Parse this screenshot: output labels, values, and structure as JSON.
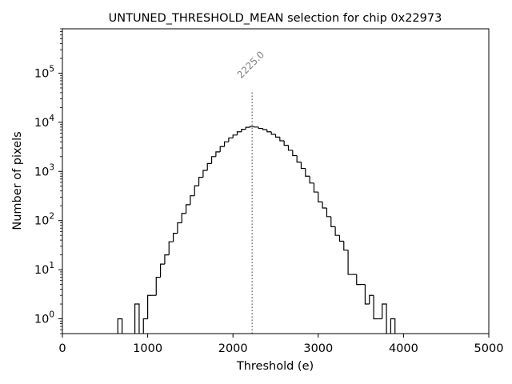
{
  "chart_data": {
    "type": "histogram",
    "title": "UNTUNED_THRESHOLD_MEAN selection for chip 0x22973",
    "xlabel": "Threshold (e)",
    "ylabel": "Number of pixels",
    "xlim": [
      0,
      5000
    ],
    "ylim": [
      0.5,
      800000
    ],
    "yscale": "log",
    "x_ticks": [
      {
        "value": 0,
        "label": "0"
      },
      {
        "value": 1000,
        "label": "1000"
      },
      {
        "value": 2000,
        "label": "2000"
      },
      {
        "value": 3000,
        "label": "3000"
      },
      {
        "value": 4000,
        "label": "4000"
      },
      {
        "value": 5000,
        "label": "5000"
      }
    ],
    "y_ticks": [
      {
        "exp": 0,
        "label": "10",
        "sup": "0"
      },
      {
        "exp": 1,
        "label": "10",
        "sup": "1"
      },
      {
        "exp": 2,
        "label": "10",
        "sup": "2"
      },
      {
        "exp": 3,
        "label": "10",
        "sup": "3"
      },
      {
        "exp": 4,
        "label": "10",
        "sup": "4"
      },
      {
        "exp": 5,
        "label": "10",
        "sup": "5"
      }
    ],
    "marker": {
      "value": 2225.0,
      "label": "2225.0",
      "line_top": 45000
    },
    "bin_width": 50,
    "bins": [
      [
        650,
        700,
        1
      ],
      [
        850,
        900,
        2
      ],
      [
        950,
        1000,
        1
      ],
      [
        1000,
        1050,
        3
      ],
      [
        1050,
        1100,
        3
      ],
      [
        1100,
        1150,
        7
      ],
      [
        1150,
        1200,
        13
      ],
      [
        1200,
        1250,
        20
      ],
      [
        1250,
        1300,
        37
      ],
      [
        1300,
        1350,
        55
      ],
      [
        1350,
        1400,
        90
      ],
      [
        1400,
        1450,
        140
      ],
      [
        1450,
        1500,
        210
      ],
      [
        1500,
        1550,
        320
      ],
      [
        1550,
        1600,
        510
      ],
      [
        1600,
        1650,
        760
      ],
      [
        1650,
        1700,
        1050
      ],
      [
        1700,
        1750,
        1450
      ],
      [
        1750,
        1800,
        2000
      ],
      [
        1800,
        1850,
        2500
      ],
      [
        1850,
        1900,
        3200
      ],
      [
        1900,
        1950,
        4000
      ],
      [
        1950,
        2000,
        4800
      ],
      [
        2000,
        2050,
        5500
      ],
      [
        2050,
        2100,
        6400
      ],
      [
        2100,
        2150,
        7200
      ],
      [
        2150,
        2200,
        7900
      ],
      [
        2200,
        2250,
        8200
      ],
      [
        2250,
        2300,
        8000
      ],
      [
        2300,
        2350,
        7500
      ],
      [
        2350,
        2400,
        7100
      ],
      [
        2400,
        2450,
        6400
      ],
      [
        2450,
        2500,
        5700
      ],
      [
        2500,
        2550,
        5000
      ],
      [
        2550,
        2600,
        4200
      ],
      [
        2600,
        2650,
        3400
      ],
      [
        2650,
        2700,
        2700
      ],
      [
        2700,
        2750,
        2100
      ],
      [
        2750,
        2800,
        1550
      ],
      [
        2800,
        2850,
        1150
      ],
      [
        2850,
        2900,
        800
      ],
      [
        2900,
        2950,
        580
      ],
      [
        2950,
        3000,
        380
      ],
      [
        3000,
        3050,
        240
      ],
      [
        3050,
        3100,
        180
      ],
      [
        3100,
        3150,
        120
      ],
      [
        3150,
        3200,
        75
      ],
      [
        3200,
        3250,
        50
      ],
      [
        3250,
        3300,
        38
      ],
      [
        3300,
        3350,
        25
      ],
      [
        3350,
        3400,
        8
      ],
      [
        3400,
        3450,
        8
      ],
      [
        3450,
        3500,
        5
      ],
      [
        3500,
        3550,
        5
      ],
      [
        3550,
        3600,
        2
      ],
      [
        3600,
        3650,
        3
      ],
      [
        3650,
        3700,
        1
      ],
      [
        3700,
        3750,
        1
      ],
      [
        3750,
        3800,
        2
      ],
      [
        3850,
        3900,
        1
      ]
    ]
  }
}
